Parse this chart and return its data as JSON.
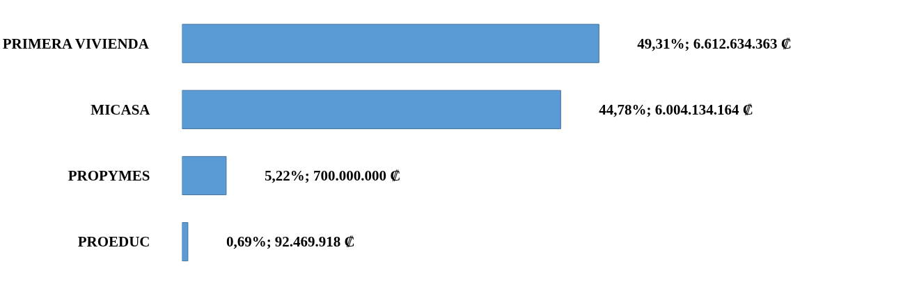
{
  "chart_data": {
    "type": "bar",
    "orientation": "horizontal",
    "categories": [
      "PRIMERA VIVIENDA",
      "MICASA",
      "PROPYMES",
      "PROEDUC"
    ],
    "values": [
      49.31,
      44.78,
      5.22,
      0.69
    ],
    "value_labels": [
      "49,31%; 6.612.634.363 ₡",
      "44,78%; 6.004.134.164 ₡",
      "5,22%; 700.000.000 ₡",
      "0,69%; 92.469.918 ₡"
    ],
    "color": "#5b9bd5",
    "grid": false
  }
}
